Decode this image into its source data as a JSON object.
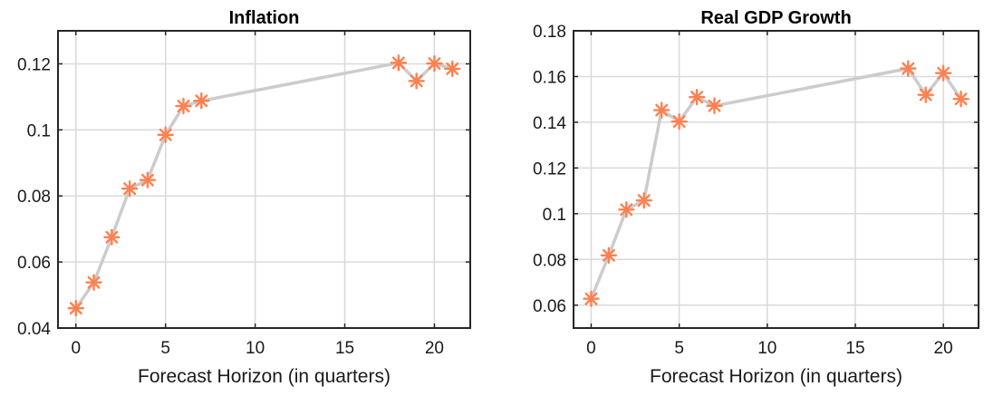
{
  "chart_data": [
    {
      "type": "scatter",
      "title": "Inflation",
      "xlabel": "Forecast Horizon (in quarters)",
      "ylabel": "",
      "xlim": [
        -1,
        22
      ],
      "ylim": [
        0.04,
        0.13
      ],
      "xticks": [
        0,
        5,
        10,
        15,
        20
      ],
      "xtick_labels": [
        "0",
        "5",
        "10",
        "15",
        "20"
      ],
      "yticks": [
        0.04,
        0.06,
        0.08,
        0.1,
        0.12
      ],
      "ytick_labels": [
        "0.04",
        "0.06",
        "0.08",
        "0.1",
        "0.12"
      ],
      "grid": true,
      "marker": "asterisk",
      "marker_color": "#ff8050",
      "line_color": "#cccccc",
      "series": [
        {
          "x": [
            0,
            1,
            2,
            3,
            4,
            5,
            6,
            7,
            18,
            19,
            20,
            21
          ],
          "y": [
            0.046,
            0.0538,
            0.0675,
            0.0822,
            0.0848,
            0.0985,
            0.1072,
            0.1088,
            0.1203,
            0.1148,
            0.1201,
            0.1185
          ]
        }
      ]
    },
    {
      "type": "scatter",
      "title": "Real GDP Growth",
      "xlabel": "Forecast Horizon (in quarters)",
      "ylabel": "",
      "xlim": [
        -1,
        22
      ],
      "ylim": [
        0.05,
        0.18
      ],
      "xticks": [
        0,
        5,
        10,
        15,
        20
      ],
      "xtick_labels": [
        "0",
        "5",
        "10",
        "15",
        "20"
      ],
      "yticks": [
        0.06,
        0.08,
        0.1,
        0.12,
        0.14,
        0.16,
        0.18
      ],
      "ytick_labels": [
        "0.06",
        "0.08",
        "0.1",
        "0.12",
        "0.14",
        "0.16",
        "0.18"
      ],
      "grid": true,
      "marker": "asterisk",
      "marker_color": "#ff8050",
      "line_color": "#cccccc",
      "series": [
        {
          "x": [
            0,
            1,
            2,
            3,
            4,
            5,
            6,
            7,
            18,
            19,
            20,
            21
          ],
          "y": [
            0.0628,
            0.0818,
            0.1018,
            0.1058,
            0.1453,
            0.1403,
            0.151,
            0.1472,
            0.1635,
            0.152,
            0.1615,
            0.1502
          ]
        }
      ]
    }
  ]
}
